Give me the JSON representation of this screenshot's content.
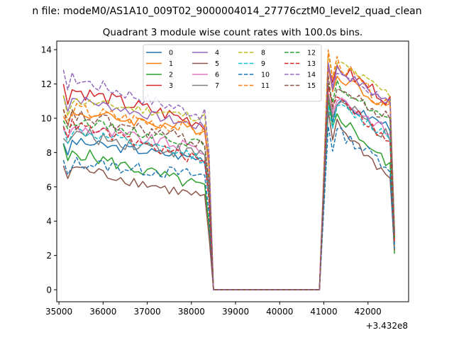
{
  "figure": {
    "suptitle": "n file: modeM0/AS1A10_009T02_9000004014_27776cztM0_level2_quad_clean"
  },
  "chart_data": {
    "type": "line",
    "title": "Quadrant 3 module wise count rates with 100.0s bins.",
    "xlabel": "",
    "ylabel": "",
    "x_offset_label": "+3.432e8",
    "xlim": [
      34950,
      42920
    ],
    "ylim": [
      -0.7,
      14.5
    ],
    "xticks": [
      35000,
      36000,
      37000,
      38000,
      39000,
      40000,
      41000,
      42000
    ],
    "yticks": [
      0,
      2,
      4,
      6,
      8,
      10,
      12,
      14
    ],
    "grid": false,
    "legend_location": "upper center",
    "legend_columns": 4,
    "x_range_on": [
      [
        35100,
        38400
      ],
      [
        41100,
        42600
      ]
    ],
    "gap": {
      "start_x": 38500,
      "end_x": 40900,
      "value": 0
    },
    "series": [
      {
        "name": "0",
        "color": "#1f77b4",
        "dash": "solid",
        "level1": 8.7,
        "end1": 7.6,
        "level2": 11.2,
        "end2": 9.4,
        "end_val": 2.6
      },
      {
        "name": "1",
        "color": "#ff7f0e",
        "dash": "solid",
        "level1": 10.4,
        "end1": 9.3,
        "level2": 12.9,
        "end2": 10.4,
        "end_val": 3.0
      },
      {
        "name": "2",
        "color": "#2ca02c",
        "dash": "solid",
        "level1": 8.2,
        "end1": 5.9,
        "level2": 10.8,
        "end2": 6.9,
        "end_val": 2.1
      },
      {
        "name": "3",
        "color": "#d62728",
        "dash": "solid",
        "level1": 11.8,
        "end1": 9.6,
        "level2": 13.3,
        "end2": 10.9,
        "end_val": 3.4
      },
      {
        "name": "4",
        "color": "#9467bd",
        "dash": "solid",
        "level1": 11.3,
        "end1": 9.4,
        "level2": 13.2,
        "end2": 10.7,
        "end_val": 3.3
      },
      {
        "name": "5",
        "color": "#8c564b",
        "dash": "solid",
        "level1": 7.3,
        "end1": 5.3,
        "level2": 10.2,
        "end2": 6.2,
        "end_val": 2.3
      },
      {
        "name": "6",
        "color": "#e377c2",
        "dash": "solid",
        "level1": 9.6,
        "end1": 8.1,
        "level2": 11.7,
        "end2": 8.9,
        "end_val": 2.8
      },
      {
        "name": "7",
        "color": "#7f7f7f",
        "dash": "solid",
        "level1": 9.2,
        "end1": 7.8,
        "level2": 11.4,
        "end2": 8.6,
        "end_val": 2.7
      },
      {
        "name": "8",
        "color": "#bcbd22",
        "dash": "dashed",
        "level1": 11.1,
        "end1": 10.0,
        "level2": 13.6,
        "end2": 11.2,
        "end_val": 3.5
      },
      {
        "name": "9",
        "color": "#17becf",
        "dash": "dashed",
        "level1": 9.4,
        "end1": 7.6,
        "level2": 11.0,
        "end2": 8.8,
        "end_val": 2.9
      },
      {
        "name": "10",
        "color": "#1f77b4",
        "dash": "dashed",
        "level1": 7.5,
        "end1": 6.6,
        "level2": 9.6,
        "end2": 7.0,
        "end_val": 2.4
      },
      {
        "name": "11",
        "color": "#ff7f0e",
        "dash": "dashed",
        "level1": 10.6,
        "end1": 9.2,
        "level2": 13.8,
        "end2": 10.2,
        "end_val": 3.1
      },
      {
        "name": "12",
        "color": "#2ca02c",
        "dash": "dashed",
        "level1": 10.0,
        "end1": 8.4,
        "level2": 12.3,
        "end2": 9.6,
        "end_val": 3.0
      },
      {
        "name": "13",
        "color": "#d62728",
        "dash": "dashed",
        "level1": 9.8,
        "end1": 7.4,
        "level2": 12.0,
        "end2": 8.2,
        "end_val": 2.8
      },
      {
        "name": "14",
        "color": "#9467bd",
        "dash": "dashed",
        "level1": 12.5,
        "end1": 10.1,
        "level2": 13.1,
        "end2": 10.8,
        "end_val": 3.4
      },
      {
        "name": "15",
        "color": "#8c564b",
        "dash": "dashed",
        "level1": 10.3,
        "end1": 8.5,
        "level2": 12.1,
        "end2": 9.7,
        "end_val": 3.2
      }
    ]
  }
}
